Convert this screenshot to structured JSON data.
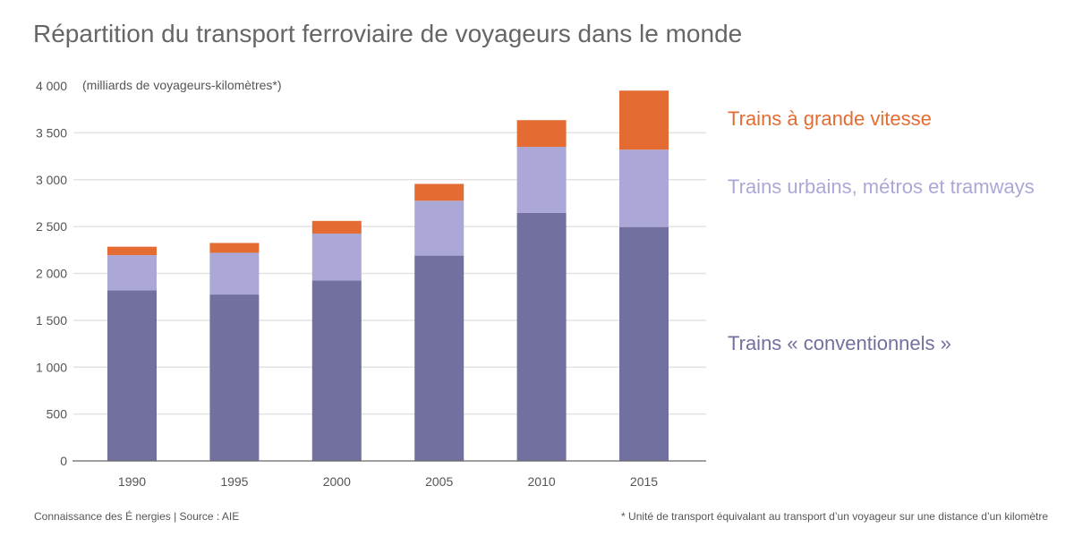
{
  "title": "Répartition du transport ferroviaire de voyageurs dans le monde",
  "footer": {
    "source": "Connaissance des É nergies | Source : AIE",
    "note": "* Unité de transport équivalant au transport d’un voyageur sur une distance d’un kilomètre"
  },
  "colors": {
    "grande_vitesse": "#E46C32",
    "urbains": "#ABA8D8",
    "conventionnels": "#72709F",
    "grid": "#E3E3E3",
    "axis": "#666666",
    "text": "#555555"
  },
  "chart_data": {
    "type": "bar",
    "stacked": true,
    "title": "Répartition du transport ferroviaire de voyageurs dans le monde",
    "xlabel": "",
    "ylabel": "(milliards de voyageurs-kilomètres*)",
    "unit_label": "(milliards de voyageurs-kilomètres*)",
    "ylim": [
      0,
      4000
    ],
    "yticks": [
      0,
      500,
      1000,
      1500,
      2000,
      2500,
      3000,
      3500,
      4000
    ],
    "ytick_labels": [
      "0",
      "500",
      "1 000",
      "1 500",
      "2 000",
      "2 500",
      "3 000",
      "3 500",
      "4 000"
    ],
    "grid": true,
    "legend_position": "right",
    "categories": [
      "1990",
      "1995",
      "2000",
      "2005",
      "2010",
      "2015"
    ],
    "series": [
      {
        "name": "Trains « conventionnels »",
        "key": "conventionnels",
        "values": [
          1820,
          1775,
          1925,
          2190,
          2645,
          2495
        ]
      },
      {
        "name": "Trains urbains, métros et tramways",
        "key": "urbains",
        "values": [
          375,
          445,
          500,
          585,
          705,
          825
        ]
      },
      {
        "name": "Trains à grande vitesse",
        "key": "grande_vitesse",
        "values": [
          90,
          105,
          135,
          180,
          285,
          630
        ]
      }
    ]
  }
}
